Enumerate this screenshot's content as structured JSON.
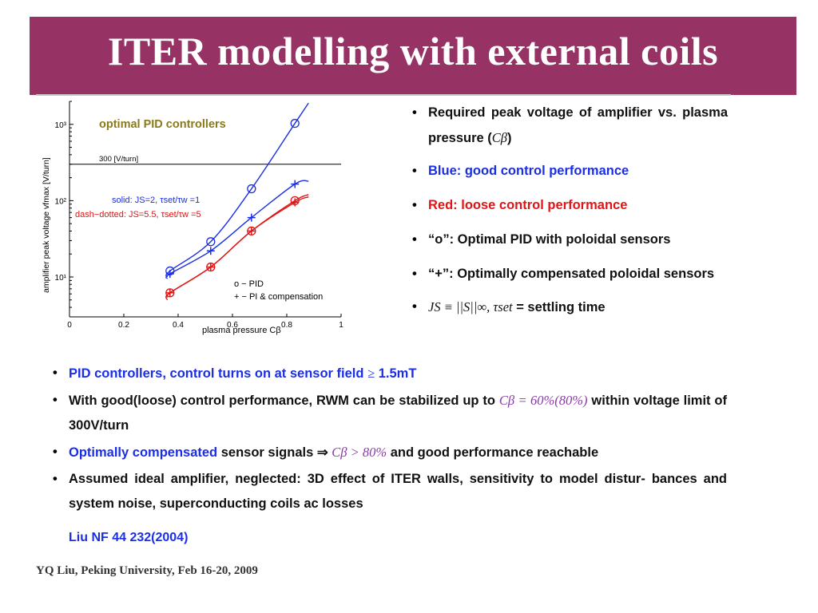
{
  "slide": {
    "title": "ITER modelling with external coils",
    "footer": "YQ Liu, Peking University, Feb 16-20, 2009",
    "reference": "Liu NF 44 232(2004)"
  },
  "right_bullets": {
    "b1_text": "Required peak voltage of amplifier vs. plasma pressure (",
    "b1_math": "Cβ",
    "b1_close": ")",
    "b2": "Blue: good control performance",
    "b3": "Red: loose control performance",
    "b4": "“o”: Optimal PID with poloidal sensors",
    "b5": "“+”:  Optimally compensated poloidal sensors",
    "b6_math": "JS ≡ ||S||∞,    τset",
    "b6_text": " = settling time"
  },
  "bottom_bullets": {
    "b1_text": "PID controllers, control turns on at sensor field ",
    "b1_math": "≥",
    "b1_end": " 1.5mT",
    "b2_text": "With good(loose) control performance, RWM can be stabilized up to ",
    "b2_math": "Cβ = 60%(80%)",
    "b2_end": " within voltage limit of 300V/turn",
    "b3_blue": "Optimally compensated",
    "b3_text": " sensor signals ⇒ ",
    "b3_math": "Cβ > 80%",
    "b3_end": " and good performance reachable",
    "b4": "Assumed ideal amplifier, neglected: 3D effect of ITER walls, sensitivity to model distur- bances and system noise, superconducting coils ac losses"
  },
  "chart_data": {
    "type": "line",
    "title": "optimal PID controllers",
    "xlabel": "plasma pressure Cβ",
    "ylabel": "amplifier peak voltage vfmax [V/turn]",
    "xlim": [
      0,
      1
    ],
    "ylim": [
      3,
      2000
    ],
    "yscale": "log",
    "x_ticks": [
      "0",
      "0.2",
      "0.4",
      "0.6",
      "0.8",
      "1"
    ],
    "y_ticks": [
      "10¹",
      "10²",
      "10³"
    ],
    "reference_line": {
      "value": 300,
      "label": "300 [V/turn]"
    },
    "legend_style": [
      "solid: JS=2,  τset/τw =1",
      "dash−dotted: JS=5.5,  τset/τw =5"
    ],
    "legend_markers": [
      "o − PID",
      "+ − PI & compensation"
    ],
    "series": [
      {
        "name": "o − PID",
        "style": "solid",
        "color": "#1a2ee6",
        "marker": "o",
        "x": [
          0.37,
          0.52,
          0.67,
          0.83
        ],
        "y": [
          12,
          29,
          143,
          1030
        ]
      },
      {
        "name": "+ − PI & compensation",
        "style": "solid",
        "color": "#1a2ee6",
        "marker": "+",
        "x": [
          0.37,
          0.52,
          0.67,
          0.83
        ],
        "y": [
          11,
          22,
          60,
          165
        ]
      },
      {
        "name": "o − PID",
        "style": "dash-dotted",
        "color": "#e01515",
        "marker": "o",
        "x": [
          0.37,
          0.52,
          0.67,
          0.83
        ],
        "y": [
          6.2,
          13.5,
          40,
          100
        ]
      },
      {
        "name": "+ − PI & compensation",
        "style": "dash-dotted",
        "color": "#e01515",
        "marker": "+",
        "x": [
          0.37,
          0.52,
          0.67,
          0.83
        ],
        "y": [
          6.2,
          13.5,
          40,
          95
        ]
      }
    ],
    "curve_ends": [
      {
        "series": 0,
        "x_start": 0.36,
        "y_start": 10,
        "x_end": 0.88,
        "y_end": 1900
      },
      {
        "series": 1,
        "x_start": 0.36,
        "y_start": 9.5,
        "x_end": 0.88,
        "y_end": 180
      },
      {
        "series": 2,
        "x_start": 0.36,
        "y_start": 5.4,
        "x_end": 0.88,
        "y_end": 120
      },
      {
        "series": 3,
        "x_start": 0.36,
        "y_start": 5.0,
        "x_end": 0.88,
        "y_end": 112
      }
    ],
    "colors": {
      "blue": "#1a2ee6",
      "red": "#e01515",
      "title": "#8a7a1a",
      "axis": "#000000"
    }
  }
}
